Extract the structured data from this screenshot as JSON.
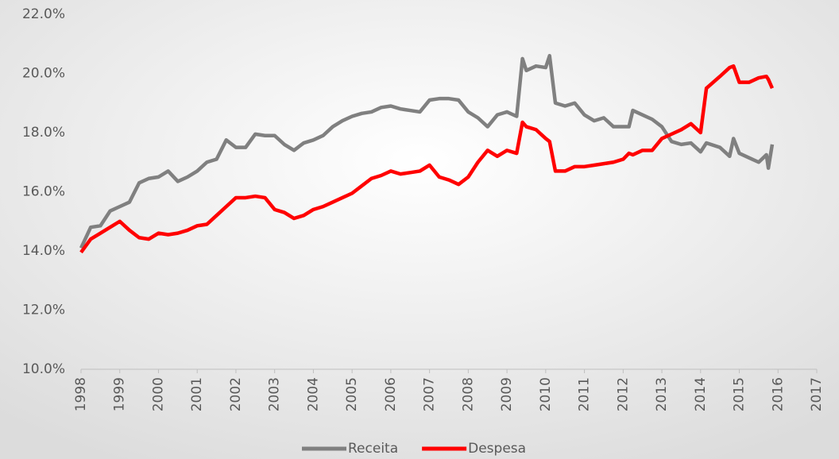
{
  "chart_data": {
    "type": "line",
    "x": [
      1998.0,
      1998.25,
      1998.5,
      1998.75,
      1999.0,
      1999.25,
      1999.5,
      1999.75,
      2000.0,
      2000.25,
      2000.5,
      2000.75,
      2001.0,
      2001.25,
      2001.5,
      2001.75,
      2002.0,
      2002.25,
      2002.5,
      2002.75,
      2003.0,
      2003.25,
      2003.5,
      2003.75,
      2004.0,
      2004.25,
      2004.5,
      2004.75,
      2005.0,
      2005.25,
      2005.5,
      2005.75,
      2006.0,
      2006.25,
      2006.5,
      2006.75,
      2007.0,
      2007.25,
      2007.5,
      2007.75,
      2008.0,
      2008.25,
      2008.5,
      2008.75,
      2009.0,
      2009.25,
      2009.4,
      2009.5,
      2009.75,
      2010.0,
      2010.1,
      2010.25,
      2010.5,
      2010.75,
      2011.0,
      2011.25,
      2011.5,
      2011.75,
      2012.0,
      2012.15,
      2012.25,
      2012.5,
      2012.75,
      2013.0,
      2013.25,
      2013.5,
      2013.75,
      2014.0,
      2014.15,
      2014.5,
      2014.75,
      2014.85,
      2015.0,
      2015.25,
      2015.5,
      2015.7,
      2015.75,
      2015.85
    ],
    "series": [
      {
        "name": "Receita",
        "color": "#808080",
        "values": [
          14.1,
          14.8,
          14.85,
          15.35,
          15.5,
          15.65,
          16.3,
          16.45,
          16.5,
          16.7,
          16.35,
          16.5,
          16.7,
          17.0,
          17.1,
          17.75,
          17.5,
          17.5,
          17.95,
          17.9,
          17.9,
          17.6,
          17.4,
          17.65,
          17.75,
          17.9,
          18.2,
          18.4,
          18.55,
          18.65,
          18.7,
          18.85,
          18.9,
          18.8,
          18.75,
          18.7,
          19.1,
          19.15,
          19.15,
          19.1,
          18.7,
          18.5,
          18.2,
          18.6,
          18.7,
          18.55,
          20.5,
          20.1,
          20.25,
          20.2,
          20.6,
          19.0,
          18.9,
          19.0,
          18.6,
          18.4,
          18.5,
          18.2,
          18.2,
          18.2,
          18.75,
          18.6,
          18.45,
          18.2,
          17.7,
          17.6,
          17.65,
          17.35,
          17.65,
          17.5,
          17.2,
          17.8,
          17.3,
          17.15,
          17.0,
          17.25,
          16.8,
          17.6
        ]
      },
      {
        "name": "Despesa",
        "color": "#ff0000",
        "values": [
          13.95,
          14.4,
          14.6,
          14.8,
          15.0,
          14.7,
          14.45,
          14.4,
          14.6,
          14.55,
          14.6,
          14.7,
          14.85,
          14.9,
          15.2,
          15.5,
          15.8,
          15.8,
          15.85,
          15.8,
          15.4,
          15.3,
          15.1,
          15.2,
          15.4,
          15.5,
          15.65,
          15.8,
          15.95,
          16.2,
          16.45,
          16.55,
          16.7,
          16.6,
          16.65,
          16.7,
          16.9,
          16.5,
          16.4,
          16.25,
          16.5,
          17.0,
          17.4,
          17.2,
          17.4,
          17.3,
          18.35,
          18.2,
          18.1,
          17.8,
          17.7,
          16.7,
          16.7,
          16.85,
          16.85,
          16.9,
          16.95,
          17.0,
          17.1,
          17.3,
          17.25,
          17.4,
          17.4,
          17.8,
          17.95,
          18.1,
          18.3,
          18.0,
          19.5,
          19.9,
          20.2,
          20.25,
          19.7,
          19.7,
          19.85,
          19.9,
          19.8,
          19.5
        ]
      }
    ],
    "xlim": [
      1998,
      2017
    ],
    "xticks": [
      1998,
      1999,
      2000,
      2001,
      2002,
      2003,
      2004,
      2005,
      2006,
      2007,
      2008,
      2009,
      2010,
      2011,
      2012,
      2013,
      2014,
      2015,
      2016,
      2017
    ],
    "ylim": [
      10,
      22
    ],
    "yticks": [
      {
        "value": 10,
        "label": "10.0%"
      },
      {
        "value": 12,
        "label": "12.0%"
      },
      {
        "value": 14,
        "label": "14.0%"
      },
      {
        "value": 16,
        "label": "16.0%"
      },
      {
        "value": 18,
        "label": "18.0%"
      },
      {
        "value": 20,
        "label": "20.0%"
      },
      {
        "value": 22,
        "label": "22.0%"
      }
    ],
    "grid": false,
    "legend": "bottom"
  }
}
